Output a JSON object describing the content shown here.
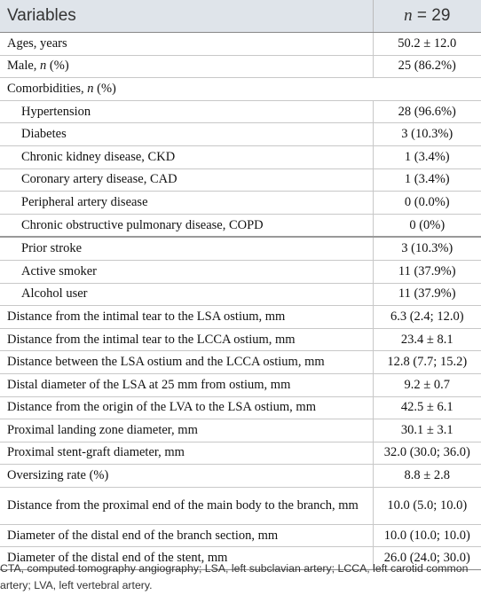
{
  "header": {
    "col1": "Variables",
    "col2_italic": "n",
    "col2_rest": " = 29"
  },
  "rows": [
    {
      "label": "Ages, years",
      "value": "50.2 ± 12.0"
    },
    {
      "label": "Male, ",
      "label_italic": "n",
      "label_tail": " (%)",
      "value": "25 (86.2%)"
    },
    {
      "label": "Comorbidities, ",
      "label_italic": "n",
      "label_tail": " (%)",
      "value": ""
    },
    {
      "label": "Hypertension",
      "value": "28 (96.6%)"
    },
    {
      "label": "Diabetes",
      "value": "3 (10.3%)"
    },
    {
      "label": "Chronic kidney disease, CKD",
      "value": "1 (3.4%)"
    },
    {
      "label": "Coronary artery disease, CAD",
      "value": "1 (3.4%)"
    },
    {
      "label": "Peripheral artery disease",
      "value": "0 (0.0%)"
    },
    {
      "label": "Chronic obstructive pulmonary disease, COPD",
      "value": "0 (0%)"
    },
    {
      "label": "Prior stroke",
      "value": "3 (10.3%)"
    },
    {
      "label": "Active smoker",
      "value": "11 (37.9%)"
    },
    {
      "label": "Alcohol user",
      "value": "11 (37.9%)"
    },
    {
      "label": "Distance from the intimal tear to the LSA ostium, mm",
      "value": "6.3 (2.4; 12.0)"
    },
    {
      "label": "Distance from the intimal tear to the LCCA ostium, mm",
      "value": "23.4 ± 8.1"
    },
    {
      "label": "Distance between the LSA ostium and the LCCA ostium, mm",
      "value": "12.8 (7.7; 15.2)"
    },
    {
      "label": "Distal diameter of the LSA at 25 mm from ostium, mm",
      "value": "9.2 ± 0.7"
    },
    {
      "label": "Distance from the origin of the LVA to the LSA ostium, mm",
      "value": "42.5 ± 6.1"
    },
    {
      "label": "Proximal landing zone diameter, mm",
      "value": "30.1 ± 3.1"
    },
    {
      "label": "Proximal stent-graft diameter, mm",
      "value": "32.0 (30.0; 36.0)"
    },
    {
      "label": "Oversizing rate (%)",
      "value": "8.8 ± 2.8"
    },
    {
      "label": "Distance from the proximal end of the main body to the branch, mm",
      "value": "10.0 (5.0; 10.0)"
    },
    {
      "label": "Diameter of the distal end of the branch section, mm",
      "value": "10.0 (10.0; 10.0)"
    },
    {
      "label": "Diameter of the distal end of the stent, mm",
      "value": "26.0 (24.0; 30.0)"
    }
  ],
  "footnote": "CTA, computed tomography angiography; LSA, left subclavian artery; LCCA, left carotid common artery; LVA, left vertebral artery."
}
